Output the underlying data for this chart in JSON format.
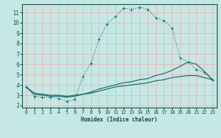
{
  "xlabel": "Humidex (Indice chaleur)",
  "bg_color": "#c5e8e5",
  "grid_color": "#e8b8b8",
  "line_color": "#1a6b6b",
  "xlim": [
    -0.5,
    23.5
  ],
  "ylim": [
    1.8,
    11.8
  ],
  "xticks": [
    0,
    1,
    2,
    3,
    4,
    5,
    6,
    7,
    8,
    9,
    10,
    11,
    12,
    13,
    14,
    15,
    16,
    17,
    18,
    19,
    20,
    21,
    22,
    23
  ],
  "yticks": [
    2,
    3,
    4,
    5,
    6,
    7,
    8,
    9,
    10,
    11
  ],
  "line1_x": [
    0,
    1,
    2,
    3,
    4,
    5,
    6,
    7,
    8,
    9,
    10,
    11,
    12,
    13,
    14,
    15,
    16,
    17,
    18,
    19,
    20,
    21,
    22,
    23
  ],
  "line1_y": [
    3.8,
    2.9,
    2.8,
    2.8,
    2.7,
    2.4,
    2.6,
    4.8,
    6.1,
    8.4,
    9.9,
    10.6,
    11.4,
    11.3,
    11.5,
    11.3,
    10.5,
    10.2,
    9.5,
    6.6,
    6.2,
    5.5,
    5.2,
    4.5
  ],
  "line2_x": [
    0,
    1,
    2,
    3,
    4,
    5,
    6,
    7,
    8,
    9,
    10,
    11,
    12,
    13,
    14,
    15,
    16,
    17,
    18,
    19,
    20,
    21,
    22,
    23
  ],
  "line2_y": [
    3.8,
    3.1,
    3.0,
    2.9,
    2.9,
    2.8,
    2.9,
    3.1,
    3.3,
    3.6,
    3.8,
    4.0,
    4.2,
    4.3,
    4.5,
    4.6,
    4.9,
    5.1,
    5.4,
    5.8,
    6.2,
    6.0,
    5.3,
    4.5
  ],
  "line3_x": [
    0,
    1,
    2,
    3,
    4,
    5,
    6,
    7,
    8,
    9,
    10,
    11,
    12,
    13,
    14,
    15,
    16,
    17,
    18,
    19,
    20,
    21,
    22,
    23
  ],
  "line3_y": [
    3.8,
    3.2,
    3.1,
    3.0,
    3.0,
    2.9,
    3.0,
    3.1,
    3.2,
    3.4,
    3.6,
    3.8,
    3.9,
    4.0,
    4.1,
    4.2,
    4.4,
    4.5,
    4.7,
    4.8,
    4.9,
    4.9,
    4.7,
    4.5
  ]
}
